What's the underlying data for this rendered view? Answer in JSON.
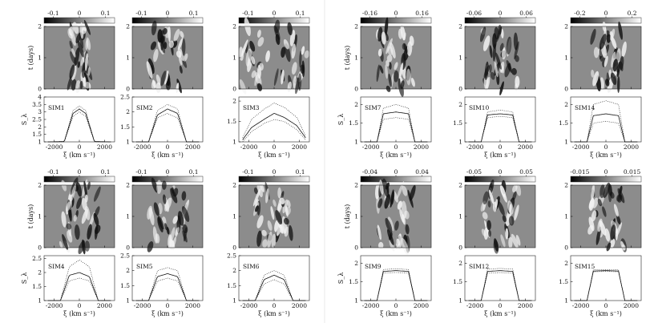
{
  "figure": {
    "time_label": "t (days)",
    "vel_label": "ξ (km s⁻¹)",
    "sigma_label": "S_λ",
    "vel_ticks": [
      "-2000",
      "0",
      "2000"
    ],
    "time_ticks": [
      "0",
      "1",
      "2"
    ]
  },
  "chart_data": [
    {
      "name": "SIM1",
      "type": "line",
      "colorbar": [
        "-0.1",
        "0",
        "0.1"
      ],
      "yticks": [
        "1",
        "1.5",
        "2",
        "2.5",
        "3",
        "3.5",
        "4"
      ],
      "ylim": [
        1,
        4
      ],
      "peak": 3.2,
      "xlim": [
        -2800,
        2800
      ],
      "x": [
        -2500,
        -1200,
        -500,
        0,
        500,
        1200,
        2500
      ],
      "curves": [
        [
          1.0,
          1.02,
          2.9,
          3.2,
          2.9,
          1.02,
          1.0
        ],
        [
          1.0,
          1.02,
          3.1,
          3.4,
          3.1,
          1.02,
          1.0
        ],
        [
          1.0,
          1.0,
          2.7,
          3.0,
          2.7,
          1.0,
          1.0
        ]
      ]
    },
    {
      "name": "SIM2",
      "type": "line",
      "colorbar": [
        "-0.1",
        "0",
        "0.1"
      ],
      "yticks": [
        "1",
        "1.5",
        "2",
        "2.5"
      ],
      "ylim": [
        1,
        2.5
      ],
      "peak": 2.1,
      "xlim": [
        -2800,
        2800
      ],
      "x": [
        -2500,
        -1500,
        -800,
        0,
        800,
        1500,
        2500
      ],
      "curves": [
        [
          1.0,
          1.0,
          1.9,
          2.1,
          1.95,
          1.0,
          1.0
        ],
        [
          1.0,
          1.0,
          2.05,
          2.25,
          2.1,
          1.0,
          1.0
        ],
        [
          1.0,
          1.0,
          1.8,
          1.95,
          1.8,
          1.0,
          1.0
        ]
      ]
    },
    {
      "name": "SIM3",
      "type": "line",
      "colorbar": [
        "-0.1",
        "0",
        "0.1"
      ],
      "yticks": [
        "1",
        "1.5",
        "2"
      ],
      "ylim": [
        1,
        2.1
      ],
      "peak": 1.7,
      "xlim": [
        -2800,
        2800
      ],
      "x": [
        -2500,
        -1800,
        -800,
        0,
        800,
        1800,
        2500
      ],
      "curves": [
        [
          1.05,
          1.35,
          1.55,
          1.7,
          1.6,
          1.4,
          1.1
        ],
        [
          1.1,
          1.55,
          1.8,
          1.95,
          1.85,
          1.6,
          1.15
        ],
        [
          1.0,
          1.25,
          1.45,
          1.55,
          1.5,
          1.3,
          1.05
        ]
      ]
    },
    {
      "name": "SIM7",
      "type": "line",
      "colorbar": [
        "-0.16",
        "0",
        "0.16"
      ],
      "yticks": [
        "1",
        "1.5",
        "2"
      ],
      "ylim": [
        1,
        2.2
      ],
      "peak": 1.8,
      "xlim": [
        -2800,
        2800
      ],
      "x": [
        -2500,
        -1500,
        -1000,
        0,
        1000,
        1500,
        2500
      ],
      "curves": [
        [
          1.0,
          1.0,
          1.75,
          1.8,
          1.75,
          1.0,
          1.0
        ],
        [
          1.0,
          1.0,
          1.9,
          2.0,
          1.9,
          1.0,
          1.0
        ],
        [
          1.0,
          1.0,
          1.6,
          1.65,
          1.6,
          1.0,
          1.0
        ]
      ]
    },
    {
      "name": "SIM10",
      "type": "line",
      "colorbar": [
        "-0.06",
        "0",
        "0.06"
      ],
      "yticks": [
        "1",
        "1.5",
        "2"
      ],
      "ylim": [
        1,
        2.2
      ],
      "peak": 1.75,
      "xlim": [
        -2800,
        2800
      ],
      "x": [
        -2500,
        -1500,
        -1000,
        0,
        1000,
        1500,
        2500
      ],
      "curves": [
        [
          1.0,
          1.0,
          1.72,
          1.75,
          1.72,
          1.0,
          1.0
        ],
        [
          1.0,
          1.0,
          1.8,
          1.85,
          1.8,
          1.0,
          1.0
        ],
        [
          1.0,
          1.0,
          1.65,
          1.68,
          1.65,
          1.0,
          1.0
        ]
      ]
    },
    {
      "name": "SIM14",
      "type": "line",
      "colorbar": [
        "-0.2",
        "0",
        "0.2"
      ],
      "yticks": [
        "1",
        "1.5",
        "2"
      ],
      "ylim": [
        1,
        2.2
      ],
      "peak": 1.75,
      "xlim": [
        -2800,
        2800
      ],
      "x": [
        -2500,
        -1500,
        -1000,
        0,
        1000,
        1500,
        2500
      ],
      "curves": [
        [
          1.0,
          1.0,
          1.7,
          1.75,
          1.7,
          1.0,
          1.0
        ],
        [
          1.0,
          1.0,
          2.0,
          2.1,
          2.0,
          1.0,
          1.0
        ],
        [
          1.0,
          1.0,
          1.5,
          1.55,
          1.5,
          1.0,
          1.0
        ]
      ]
    },
    {
      "name": "SIM4",
      "type": "line",
      "colorbar": [
        "-0.1",
        "0",
        "0.1"
      ],
      "yticks": [
        "1",
        "1.5",
        "2",
        "2.5"
      ],
      "ylim": [
        1,
        2.6
      ],
      "peak": 2.0,
      "xlim": [
        -2800,
        2800
      ],
      "x": [
        -2500,
        -1500,
        -800,
        0,
        800,
        1500,
        2500
      ],
      "curves": [
        [
          1.0,
          1.0,
          1.9,
          2.0,
          1.85,
          1.0,
          1.0
        ],
        [
          1.0,
          1.0,
          2.2,
          2.45,
          2.2,
          1.0,
          1.0
        ],
        [
          1.0,
          1.0,
          1.7,
          1.8,
          1.7,
          1.0,
          1.0
        ]
      ]
    },
    {
      "name": "SIM5",
      "type": "line",
      "colorbar": [
        "-0.1",
        "0",
        "0.1"
      ],
      "yticks": [
        "1",
        "1.5",
        "2",
        "2.5"
      ],
      "ylim": [
        1,
        2.5
      ],
      "peak": 1.9,
      "xlim": [
        -2800,
        2800
      ],
      "x": [
        -2500,
        -1500,
        -800,
        0,
        800,
        1500,
        2500
      ],
      "curves": [
        [
          1.0,
          1.0,
          1.8,
          1.9,
          1.8,
          1.0,
          1.0
        ],
        [
          1.0,
          1.0,
          2.0,
          2.1,
          2.0,
          1.0,
          1.0
        ],
        [
          1.0,
          1.0,
          1.65,
          1.75,
          1.65,
          1.0,
          1.0
        ]
      ]
    },
    {
      "name": "SIM6",
      "type": "line",
      "colorbar": [
        "-0.1",
        "0",
        "0.1"
      ],
      "yticks": [
        "1",
        "1.5",
        "2",
        "2.5"
      ],
      "ylim": [
        1,
        2.5
      ],
      "peak": 1.85,
      "xlim": [
        -2800,
        2800
      ],
      "x": [
        -2500,
        -1500,
        -800,
        0,
        800,
        1500,
        2500
      ],
      "curves": [
        [
          1.0,
          1.0,
          1.7,
          1.85,
          1.7,
          1.0,
          1.0
        ],
        [
          1.0,
          1.0,
          1.85,
          2.0,
          1.85,
          1.0,
          1.0
        ],
        [
          1.0,
          1.0,
          1.55,
          1.7,
          1.55,
          1.0,
          1.0
        ]
      ]
    },
    {
      "name": "SIM9",
      "type": "line",
      "colorbar": [
        "-0.04",
        "0",
        "0.04"
      ],
      "yticks": [
        "1",
        "1.5",
        "2"
      ],
      "ylim": [
        1,
        2.2
      ],
      "peak": 1.8,
      "xlim": [
        -2800,
        2800
      ],
      "x": [
        -2500,
        -1500,
        -1000,
        0,
        1000,
        1500,
        2500
      ],
      "curves": [
        [
          1.0,
          1.0,
          1.78,
          1.8,
          1.78,
          1.0,
          1.0
        ],
        [
          1.0,
          1.0,
          1.83,
          1.85,
          1.83,
          1.0,
          1.0
        ],
        [
          1.0,
          1.0,
          1.74,
          1.75,
          1.74,
          1.0,
          1.0
        ]
      ]
    },
    {
      "name": "SIM12",
      "type": "line",
      "colorbar": [
        "-0.05",
        "0",
        "0.05"
      ],
      "yticks": [
        "1",
        "1.5",
        "2"
      ],
      "ylim": [
        1,
        2.2
      ],
      "peak": 1.8,
      "xlim": [
        -2800,
        2800
      ],
      "x": [
        -2500,
        -1500,
        -1000,
        0,
        1000,
        1500,
        2500
      ],
      "curves": [
        [
          1.0,
          1.0,
          1.78,
          1.8,
          1.78,
          1.0,
          1.0
        ],
        [
          1.0,
          1.0,
          1.84,
          1.86,
          1.84,
          1.0,
          1.0
        ],
        [
          1.0,
          1.0,
          1.73,
          1.75,
          1.73,
          1.0,
          1.0
        ]
      ]
    },
    {
      "name": "SIM15",
      "type": "line",
      "colorbar": [
        "-0.015",
        "0",
        "0.015"
      ],
      "yticks": [
        "1",
        "1.5",
        "2"
      ],
      "ylim": [
        1,
        2.2
      ],
      "peak": 1.8,
      "xlim": [
        -2800,
        2800
      ],
      "x": [
        -2500,
        -1500,
        -1000,
        0,
        1000,
        1500,
        2500
      ],
      "curves": [
        [
          1.0,
          1.0,
          1.79,
          1.8,
          1.79,
          1.0,
          1.0
        ],
        [
          1.0,
          1.0,
          1.82,
          1.83,
          1.82,
          1.0,
          1.0
        ],
        [
          1.0,
          1.0,
          1.77,
          1.78,
          1.77,
          1.0,
          1.0
        ]
      ]
    }
  ]
}
